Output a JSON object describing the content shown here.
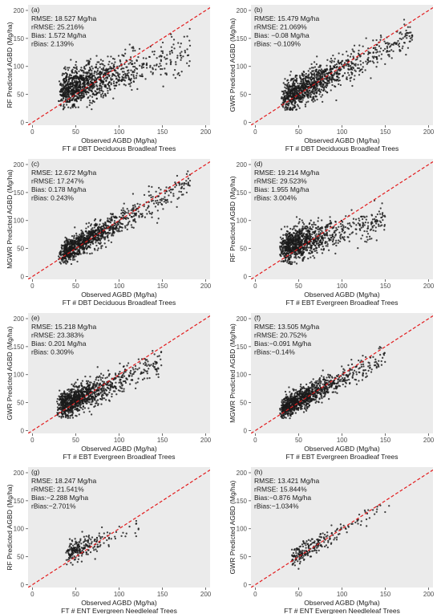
{
  "chart_data": [
    {
      "type": "scatter",
      "panel_label": "(a)",
      "ylabel": "RF  Predicted AGBD (Mg/ha)",
      "xlabel": "Observed AGBD (Mg/ha)",
      "xlabel2": "FT # DBT Deciduous Broadleaf Trees",
      "stats": [
        "RMSE: 18.527 Mg/ha",
        "rRMSE: 25.216%",
        "Bias: 1.572 Mg/ha",
        "rBias: 2.139%"
      ],
      "xlim": [
        -5,
        205
      ],
      "ylim": [
        -5,
        210
      ],
      "xticks": [
        0,
        50,
        100,
        150,
        200
      ],
      "yticks": [
        0,
        50,
        100,
        150,
        200
      ],
      "reference_line": "1:1",
      "grid": false,
      "background": "#ebebeb",
      "point_color": "#1a1a1a",
      "line_color": "#e31a1c",
      "x_range": [
        30,
        182
      ],
      "n_points": 1100,
      "slope": 0.45,
      "intercept": 42,
      "spread": 17
    },
    {
      "type": "scatter",
      "panel_label": "(b)",
      "ylabel": "GWR Predicted AGBD (Mg/ha)",
      "xlabel": "Observed AGBD (Mg/ha)",
      "xlabel2": "FT # DBT Deciduous Broadleaf Trees",
      "stats": [
        "RMSE: 15.479 Mg/ha",
        "rRMSE: 21.069%",
        "Bias: −0.08 Mg/ha",
        "rBias: −0.109%"
      ],
      "xlim": [
        -5,
        205
      ],
      "ylim": [
        -5,
        210
      ],
      "xticks": [
        0,
        50,
        100,
        150,
        200
      ],
      "yticks": [
        0,
        50,
        100,
        150,
        200
      ],
      "reference_line": "1:1",
      "grid": false,
      "background": "#ebebeb",
      "point_color": "#1a1a1a",
      "line_color": "#e31a1c",
      "x_range": [
        30,
        182
      ],
      "n_points": 1100,
      "slope": 0.78,
      "intercept": 17,
      "spread": 14
    },
    {
      "type": "scatter",
      "panel_label": "(c)",
      "ylabel": "MGWR Predicted AGBD (Mg/ha)",
      "xlabel": "Observed AGBD (Mg/ha)",
      "xlabel2": "FT # DBT Deciduous Broadleaf Trees",
      "stats": [
        "RMSE: 12.672 Mg/ha",
        "rRMSE: 17.247%",
        "Bias: 0.178 Mg/ha",
        "rBias: 0.243%"
      ],
      "xlim": [
        -5,
        205
      ],
      "ylim": [
        -5,
        210
      ],
      "xticks": [
        0,
        50,
        100,
        150,
        200
      ],
      "yticks": [
        0,
        50,
        100,
        150,
        200
      ],
      "reference_line": "1:1",
      "grid": false,
      "background": "#ebebeb",
      "point_color": "#1a1a1a",
      "line_color": "#e31a1c",
      "x_range": [
        30,
        182
      ],
      "n_points": 1100,
      "slope": 0.85,
      "intercept": 12,
      "spread": 11
    },
    {
      "type": "scatter",
      "panel_label": "(d)",
      "ylabel": "RF  Predicted AGBD (Mg/ha)",
      "xlabel": "Observed AGBD (Mg/ha)",
      "xlabel2": "FT # EBT Evergreen Broadleaf Trees",
      "stats": [
        "RMSE: 19.214 Mg/ha",
        "rRMSE: 29.523%",
        "Bias: 1.955 Mg/ha",
        "rBias: 3.004%"
      ],
      "xlim": [
        -5,
        205
      ],
      "ylim": [
        -5,
        210
      ],
      "xticks": [
        0,
        50,
        100,
        150,
        200
      ],
      "yticks": [
        0,
        50,
        100,
        150,
        200
      ],
      "reference_line": "1:1",
      "grid": false,
      "background": "#ebebeb",
      "point_color": "#1a1a1a",
      "line_color": "#e31a1c",
      "x_range": [
        28,
        150
      ],
      "n_points": 1000,
      "slope": 0.4,
      "intercept": 40,
      "spread": 14
    },
    {
      "type": "scatter",
      "panel_label": "(e)",
      "ylabel": "GWR Predicted AGBD (Mg/ha)",
      "xlabel": "Observed AGBD (Mg/ha)",
      "xlabel2": "FT # EBT Evergreen Broadleaf Trees",
      "stats": [
        "RMSE: 15.218 Mg/ha",
        "rRMSE: 23.383%",
        "Bias: 0.201 Mg/ha",
        "rBias: 0.309%"
      ],
      "xlim": [
        -5,
        205
      ],
      "ylim": [
        -5,
        210
      ],
      "xticks": [
        0,
        50,
        100,
        150,
        200
      ],
      "yticks": [
        0,
        50,
        100,
        150,
        200
      ],
      "reference_line": "1:1",
      "grid": false,
      "background": "#ebebeb",
      "point_color": "#1a1a1a",
      "line_color": "#e31a1c",
      "x_range": [
        28,
        150
      ],
      "n_points": 1000,
      "slope": 0.72,
      "intercept": 19,
      "spread": 12
    },
    {
      "type": "scatter",
      "panel_label": "(f)",
      "ylabel": "MGWR Predicted AGBD (Mg/ha)",
      "xlabel": "Observed AGBD (Mg/ha)",
      "xlabel2": "FT # EBT Evergreen Broadleaf Trees",
      "stats": [
        "RMSE: 13.505 Mg/ha",
        "rRMSE: 20.752%",
        "Bias:−0.091 Mg/ha",
        "rBias:−0.14%"
      ],
      "xlim": [
        -5,
        205
      ],
      "ylim": [
        -5,
        210
      ],
      "xticks": [
        0,
        50,
        100,
        150,
        200
      ],
      "yticks": [
        0,
        50,
        100,
        150,
        200
      ],
      "reference_line": "1:1",
      "grid": false,
      "background": "#ebebeb",
      "point_color": "#1a1a1a",
      "line_color": "#e31a1c",
      "x_range": [
        28,
        150
      ],
      "n_points": 1000,
      "slope": 0.8,
      "intercept": 13,
      "spread": 10
    },
    {
      "type": "scatter",
      "panel_label": "(g)",
      "ylabel": "RF  Predicted AGBD (Mg/ha)",
      "xlabel": "Observed AGBD (Mg/ha)",
      "xlabel2": "FT # ENT Evergreen Needleleaf Trees",
      "stats": [
        "RMSE: 18.247 Mg/ha",
        "rRMSE: 21.541%",
        "Bias:−2.288 Mg/ha",
        "rBias:−2.701%"
      ],
      "xlim": [
        -5,
        205
      ],
      "ylim": [
        -5,
        210
      ],
      "xticks": [
        0,
        50,
        100,
        150,
        200
      ],
      "yticks": [
        0,
        50,
        100,
        150,
        200
      ],
      "reference_line": "1:1",
      "grid": false,
      "background": "#ebebeb",
      "point_color": "#1a1a1a",
      "line_color": "#e31a1c",
      "x_range": [
        38,
        125
      ],
      "n_points": 230,
      "slope": 0.55,
      "intercept": 35,
      "spread": 10
    },
    {
      "type": "scatter",
      "panel_label": "(h)",
      "ylabel": "GWR Predicted AGBD (Mg/ha)",
      "xlabel": "Observed AGBD (Mg/ha)",
      "xlabel2": "FT # ENT Evergreen Needleleaf Trees",
      "stats": [
        "RMSE: 13.421 Mg/ha",
        "rRMSE: 15.844%",
        "Bias:−0.876 Mg/ha",
        "rBias:−1.034%"
      ],
      "xlim": [
        -5,
        205
      ],
      "ylim": [
        -5,
        210
      ],
      "xticks": [
        0,
        50,
        100,
        150,
        200
      ],
      "yticks": [
        0,
        50,
        100,
        150,
        200
      ],
      "reference_line": "1:1",
      "grid": false,
      "background": "#ebebeb",
      "point_color": "#1a1a1a",
      "line_color": "#e31a1c",
      "x_range": [
        40,
        155
      ],
      "n_points": 230,
      "slope": 0.85,
      "intercept": 12,
      "spread": 8
    }
  ]
}
